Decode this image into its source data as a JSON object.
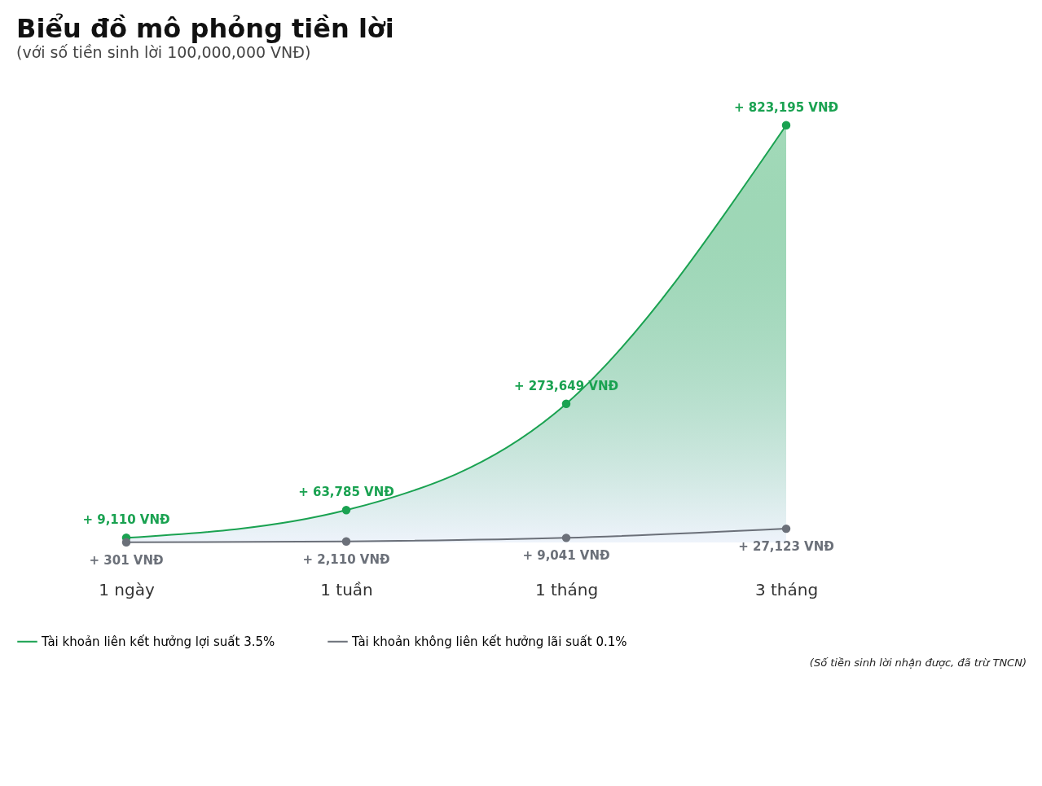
{
  "chart_data": {
    "type": "line",
    "title": "Biểu đồ mô phỏng tiền lời",
    "subtitle": "(với số tiền sinh lời 100,000,000 VNĐ)",
    "categories": [
      "1 ngày",
      "1 tuần",
      "1 tháng",
      "3 tháng"
    ],
    "series": [
      {
        "name": "Tài khoản liên kết hưởng lợi suất 3.5%",
        "type": "area",
        "color": "#1aa251",
        "values": [
          9110,
          63785,
          273649,
          823195
        ],
        "value_labels": [
          "+ 9,110 VNĐ",
          "+ 63,785 VNĐ",
          "+ 273,649 VNĐ",
          "+ 823,195 VNĐ"
        ]
      },
      {
        "name": "Tài khoản không liên kết hưởng lãi suất 0.1%",
        "color": "#6b7079",
        "values": [
          301,
          2110,
          9041,
          27123
        ],
        "value_labels": [
          "+ 301 VNĐ",
          "+ 2,110 VNĐ",
          "+ 9,041 VNĐ",
          "+ 27,123 VNĐ"
        ]
      }
    ],
    "annotations": [
      "(Số tiền sinh lời nhận được, đã trừ TNCN)"
    ],
    "marker": "circle",
    "line_style": "solid",
    "legend": "bottom",
    "grid": false
  }
}
